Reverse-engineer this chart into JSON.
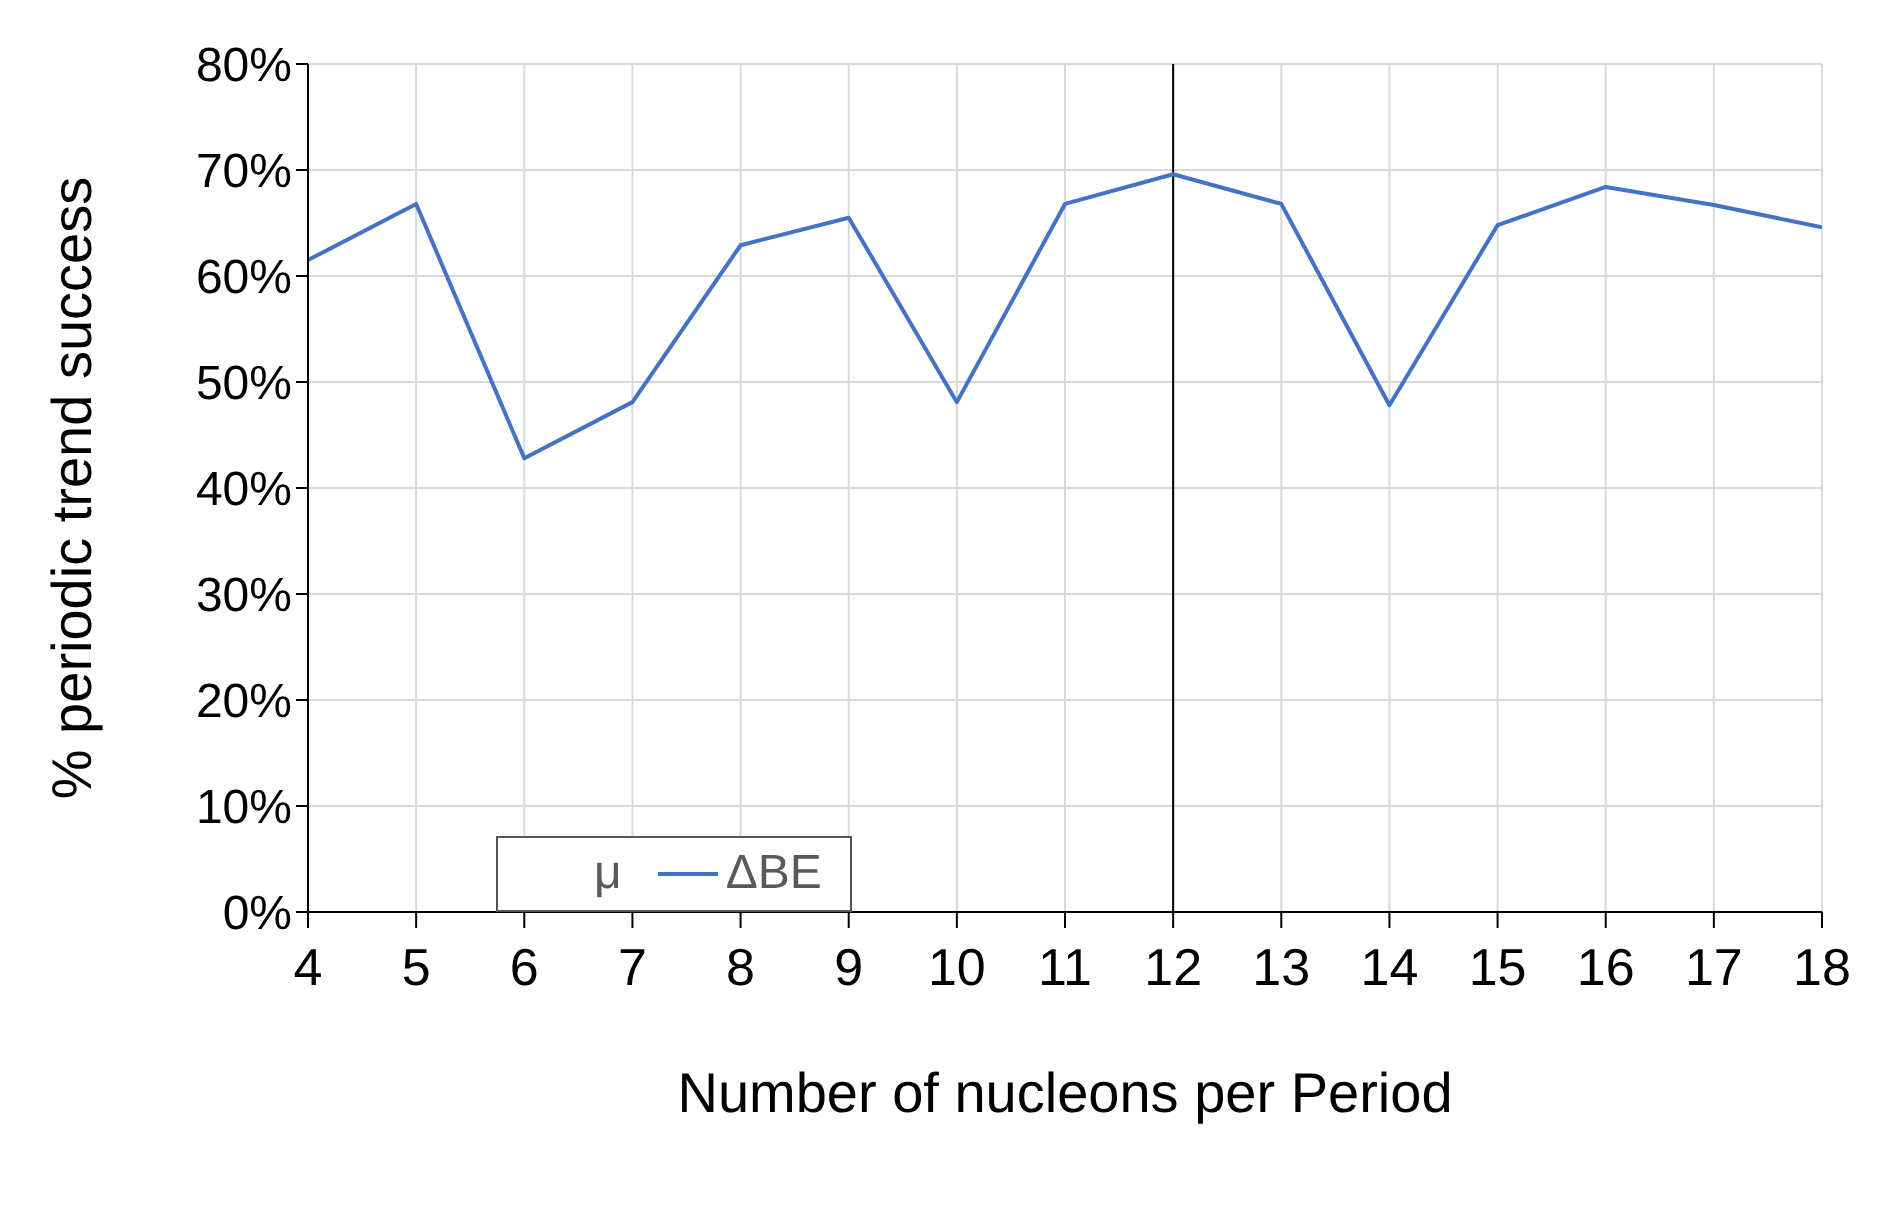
{
  "chart_data": {
    "type": "line",
    "xlabel": "Number of nucleons per Period",
    "ylabel": "%  periodic trend success",
    "x": [
      4,
      5,
      6,
      7,
      8,
      9,
      10,
      11,
      12,
      13,
      14,
      15,
      16,
      17,
      18
    ],
    "series": [
      {
        "name": "μ",
        "values": [
          null,
          null,
          null,
          null,
          null,
          null,
          null,
          null,
          null,
          null,
          null,
          null,
          null,
          null,
          null
        ]
      },
      {
        "name": "ΔBE",
        "color": "#4472c4",
        "values": [
          61.5,
          66.8,
          42.8,
          48.1,
          62.9,
          65.5,
          48.1,
          66.8,
          69.6,
          66.8,
          47.8,
          64.8,
          68.4,
          66.7,
          64.6
        ]
      }
    ],
    "xlim": [
      4,
      18
    ],
    "xticks": [
      4,
      5,
      6,
      7,
      8,
      9,
      10,
      11,
      12,
      13,
      14,
      15,
      16,
      17,
      18
    ],
    "ylim": [
      0,
      80
    ],
    "yticks": [
      {
        "value": 0,
        "label": "0%"
      },
      {
        "value": 10,
        "label": "10%"
      },
      {
        "value": 20,
        "label": "20%"
      },
      {
        "value": 30,
        "label": "30%"
      },
      {
        "value": 40,
        "label": "40%"
      },
      {
        "value": 50,
        "label": "50%"
      },
      {
        "value": 60,
        "label": "60%"
      },
      {
        "value": 70,
        "label": "70%"
      },
      {
        "value": 80,
        "label": "80%"
      }
    ],
    "ref_lines": [
      {
        "axis": "x",
        "value": 12,
        "color": "#000000"
      }
    ],
    "grid": true,
    "legend": "bottom left",
    "marker": "none",
    "line_style": "solid"
  }
}
